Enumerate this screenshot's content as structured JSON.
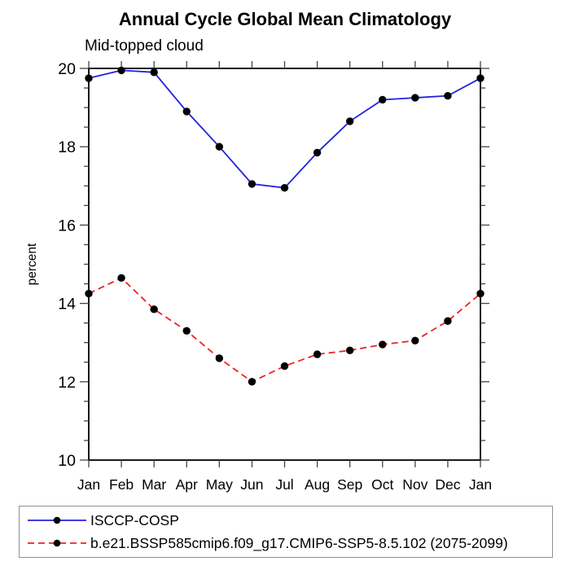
{
  "chart_data": {
    "type": "line",
    "title": "Annual Cycle Global Mean Climatology",
    "subtitle": "Mid-topped cloud",
    "xlabel": "",
    "ylabel": "percent",
    "ylim": [
      10,
      20
    ],
    "ytick_major": [
      10,
      12,
      14,
      16,
      18,
      20
    ],
    "ytick_minor_step": 0.5,
    "grid": false,
    "legend_position": "bottom-left-box",
    "categories": [
      "Jan",
      "Feb",
      "Mar",
      "Apr",
      "May",
      "Jun",
      "Jul",
      "Aug",
      "Sep",
      "Oct",
      "Nov",
      "Dec",
      "Jan"
    ],
    "series": [
      {
        "name": "ISCCP-COSP",
        "color": "#2222dd",
        "line_style": "solid",
        "marker": "filled-circle",
        "marker_color": "#000000",
        "values": [
          19.75,
          19.95,
          19.9,
          18.9,
          18.0,
          17.05,
          16.95,
          17.85,
          18.65,
          19.2,
          19.25,
          19.3,
          19.75
        ]
      },
      {
        "name": "b.e21.BSSP585cmip6.f09_g17.CMIP6-SSP5-8.5.102 (2075-2099)",
        "color": "#ee2222",
        "line_style": "dashed",
        "marker": "filled-circle",
        "marker_color": "#000000",
        "values": [
          14.25,
          14.65,
          13.85,
          13.3,
          12.6,
          12.0,
          12.4,
          12.7,
          12.8,
          12.95,
          13.05,
          13.55,
          14.25
        ]
      }
    ]
  }
}
